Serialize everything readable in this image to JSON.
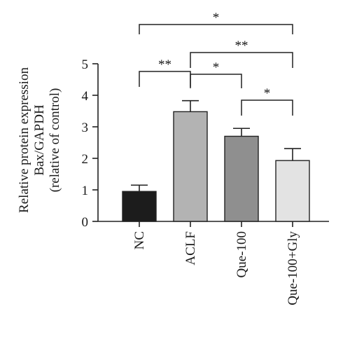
{
  "chart_data": {
    "type": "bar",
    "categories": [
      "NC",
      "ACLF",
      "Que-100",
      "Que-100+Gly"
    ],
    "values": [
      0.95,
      3.48,
      2.7,
      1.93
    ],
    "errors": [
      0.2,
      0.35,
      0.25,
      0.38
    ],
    "bar_colors": [
      "#1c1c1c",
      "#b3b3b3",
      "#8f8f8f",
      "#e3e3e3"
    ],
    "ylabel_lines": [
      "Relative protein expression",
      "Bax/GAPDH",
      "(relative of control)"
    ],
    "ylim": [
      0,
      5
    ],
    "yticks": [
      "0",
      "1",
      "2",
      "3",
      "4",
      "5"
    ],
    "significance": [
      {
        "from": 0,
        "to": 1,
        "label": "**"
      },
      {
        "from": 1,
        "to": 2,
        "label": "*"
      },
      {
        "from": 2,
        "to": 3,
        "label": "*"
      },
      {
        "from": 1,
        "to": 3,
        "label": "**"
      },
      {
        "from": 0,
        "to": 3,
        "label": "*"
      }
    ]
  }
}
